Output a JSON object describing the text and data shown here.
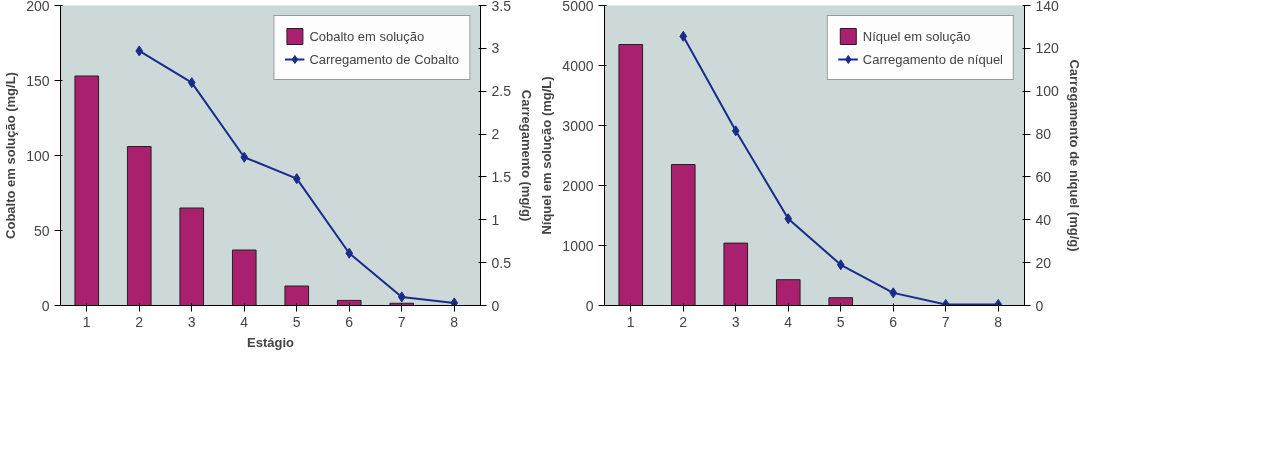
{
  "chart_data": [
    {
      "type": "bar",
      "xlabel": "Estágio",
      "ylabel": "Cobalto em solução (mg/L)",
      "y2label": "Carregamento (mg/g)",
      "categories": [
        "1",
        "2",
        "3",
        "4",
        "5",
        "6",
        "7",
        "8"
      ],
      "ylim": [
        0,
        200
      ],
      "yticks": [
        0,
        50,
        100,
        150,
        200
      ],
      "y2lim": [
        0,
        3.5
      ],
      "y2ticks": [
        0,
        0.5,
        1,
        1.5,
        2,
        2.5,
        3,
        3.5
      ],
      "grid": false,
      "legend": "top right",
      "marker": "diamond",
      "series": [
        {
          "name": "Cobalto em solução",
          "color": "#a8206e",
          "values": [
            153,
            106,
            65,
            37,
            13,
            3.4,
            1.5,
            null
          ]
        },
        {
          "name": "Carregamento de Cobalto",
          "type": "line",
          "axis": "y2",
          "color": "#1a2b8a",
          "values": [
            null,
            2.97,
            2.6,
            1.73,
            1.48,
            0.61,
            0.1,
            0.03
          ]
        }
      ]
    },
    {
      "type": "bar",
      "ylabel": "Níquel em solução (mg/L)",
      "y2label": "Carregamento de níquel (mg/g)",
      "categories": [
        "1",
        "2",
        "3",
        "4",
        "5",
        "6",
        "7",
        "8"
      ],
      "ylim": [
        0,
        5000
      ],
      "yticks": [
        0,
        1000,
        2000,
        3000,
        4000,
        5000
      ],
      "y2lim": [
        0,
        140
      ],
      "y2ticks": [
        0,
        20,
        40,
        60,
        80,
        100,
        120,
        140
      ],
      "grid": false,
      "legend": "top right",
      "marker": "diamond",
      "series": [
        {
          "name": "Níquel em solução",
          "color": "#a8206e",
          "values": [
            4350,
            2350,
            1040,
            430,
            130,
            null,
            null,
            null
          ]
        },
        {
          "name": "Carregamento de níquel",
          "type": "line",
          "axis": "y2",
          "color": "#1a2b8a",
          "values": [
            null,
            125.6,
            81.5,
            40.5,
            19,
            5.9,
            0.5,
            0.5
          ]
        }
      ]
    }
  ]
}
